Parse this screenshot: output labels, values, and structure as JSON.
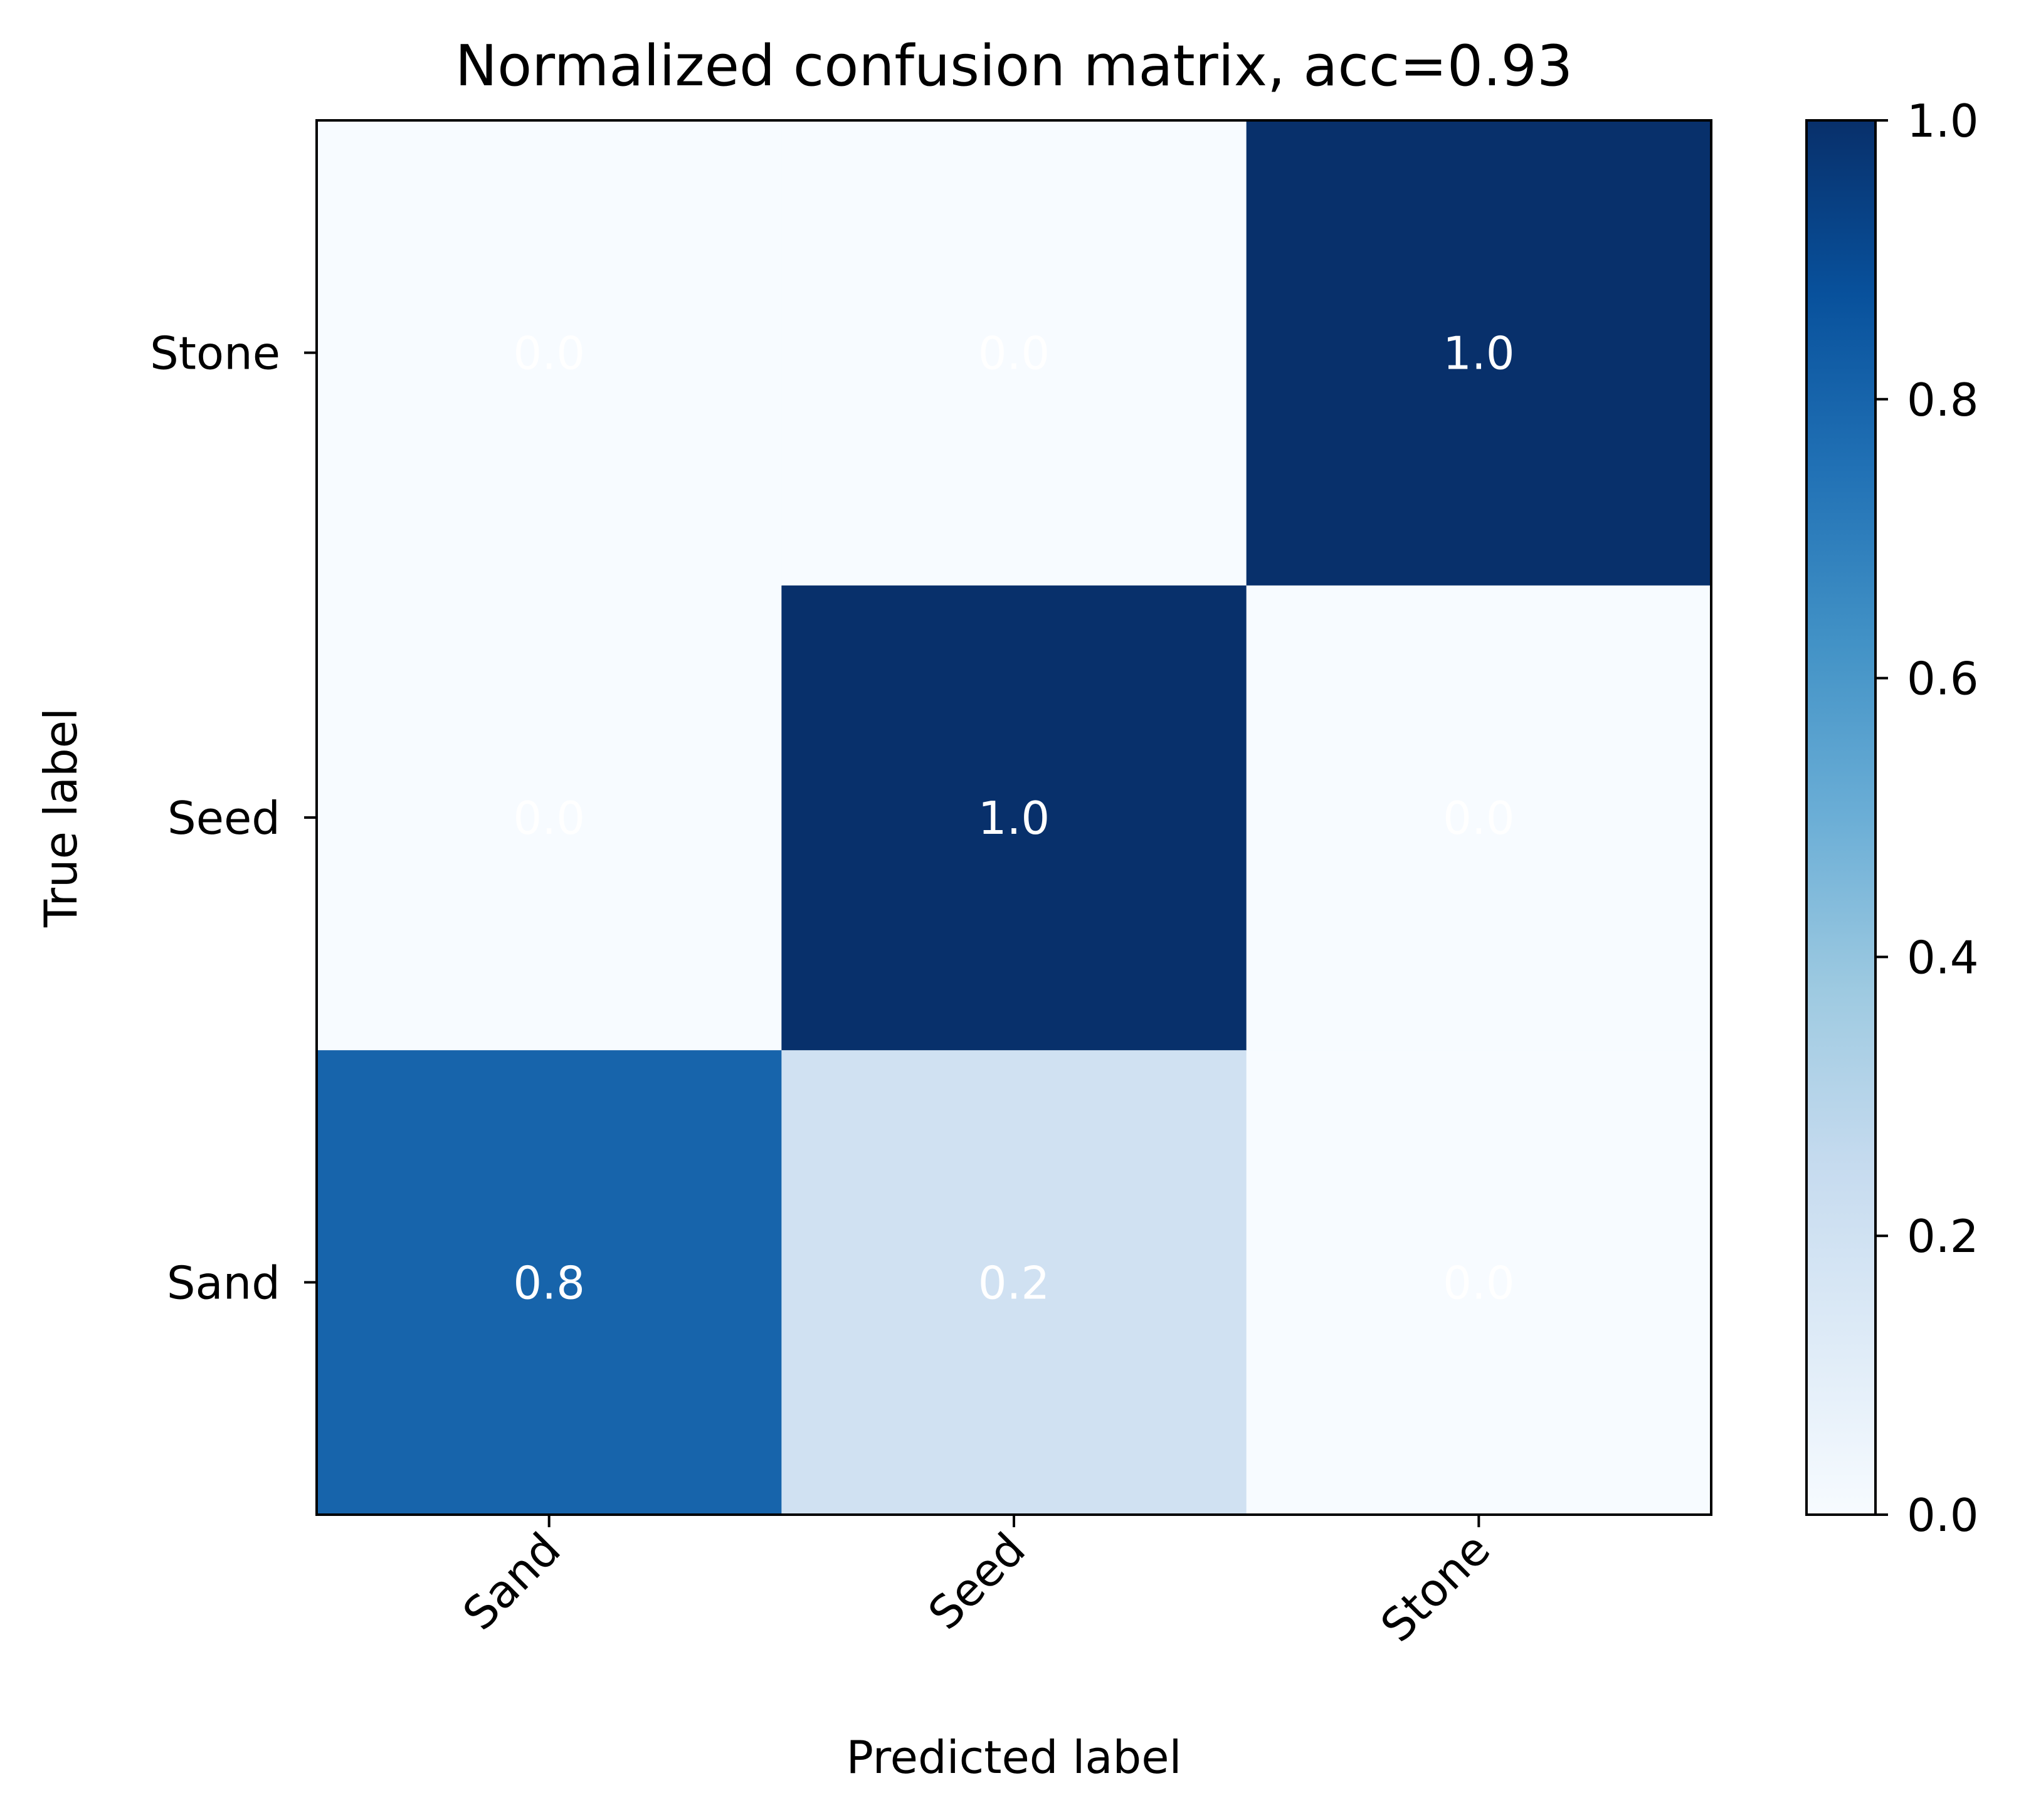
{
  "chart_data": {
    "type": "heatmap",
    "title": "Normalized confusion matrix, acc=0.93",
    "xlabel": "Predicted label",
    "ylabel": "True label",
    "x_categories": [
      "Sand",
      "Seed",
      "Stone"
    ],
    "y_categories": [
      "Sand",
      "Seed",
      "Stone"
    ],
    "y_order_bottom_to_top": true,
    "values": [
      [
        0.8,
        0.2,
        0.0
      ],
      [
        0.0,
        1.0,
        0.0
      ],
      [
        0.0,
        0.0,
        1.0
      ]
    ],
    "cell_labels": [
      [
        "0.8",
        "0.2",
        "0.0"
      ],
      [
        "0.0",
        "1.0",
        "0.0"
      ],
      [
        "0.0",
        "0.0",
        "1.0"
      ]
    ],
    "cell_label_color": "#ffffff",
    "colormap": "Blues",
    "colorbar": {
      "range": [
        0.0,
        1.0
      ],
      "ticks": [
        0.0,
        0.2,
        0.4,
        0.6,
        0.8,
        1.0
      ],
      "tick_labels": [
        "0.0",
        "0.2",
        "0.4",
        "0.6",
        "0.8",
        "1.0"
      ],
      "placement": "right"
    },
    "grid": false
  }
}
